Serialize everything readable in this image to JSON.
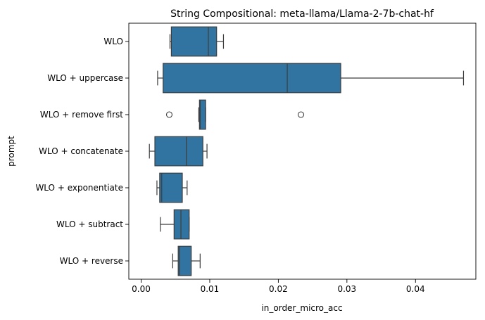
{
  "chart_data": {
    "type": "box",
    "orientation": "horizontal",
    "title": "String Compositional: meta-llama/Llama-2-7b-chat-hf",
    "xlabel": "in_order_micro_acc",
    "ylabel": "prompt",
    "xlim": [
      -0.0018,
      0.0488
    ],
    "xticks": [
      0.0,
      0.01,
      0.02,
      0.03,
      0.04
    ],
    "xtick_labels": [
      "0.00",
      "0.01",
      "0.02",
      "0.03",
      "0.04"
    ],
    "grid": false,
    "box_color": "#3274a1",
    "edge_color": "#3d3d3d",
    "categories": [
      "WLO",
      "WLO + uppercase",
      "WLO + remove first",
      "WLO + concatenate",
      "WLO + exponentiate",
      "WLO + subtract",
      "WLO + reverse"
    ],
    "boxes": [
      {
        "label": "WLO",
        "whislo": 0.0042,
        "q1": 0.0044,
        "med": 0.0098,
        "q3": 0.011,
        "whishi": 0.012,
        "fliers": []
      },
      {
        "label": "WLO + uppercase",
        "whislo": 0.0024,
        "q1": 0.0032,
        "med": 0.0213,
        "q3": 0.0291,
        "whishi": 0.047,
        "fliers": []
      },
      {
        "label": "WLO + remove first",
        "whislo": 0.0084,
        "q1": 0.0085,
        "med": 0.0086,
        "q3": 0.0094,
        "whishi": 0.0094,
        "fliers": [
          0.0041,
          0.0233
        ]
      },
      {
        "label": "WLO + concatenate",
        "whislo": 0.0012,
        "q1": 0.002,
        "med": 0.0066,
        "q3": 0.009,
        "whishi": 0.0096,
        "fliers": []
      },
      {
        "label": "WLO + exponentiate",
        "whislo": 0.0023,
        "q1": 0.0027,
        "med": 0.003,
        "q3": 0.006,
        "whishi": 0.0067,
        "fliers": []
      },
      {
        "label": "WLO + subtract",
        "whislo": 0.0028,
        "q1": 0.0048,
        "med": 0.0058,
        "q3": 0.007,
        "whishi": 0.007,
        "fliers": []
      },
      {
        "label": "WLO + reverse",
        "whislo": 0.0046,
        "q1": 0.0054,
        "med": 0.0056,
        "q3": 0.0073,
        "whishi": 0.0086,
        "fliers": []
      }
    ]
  }
}
